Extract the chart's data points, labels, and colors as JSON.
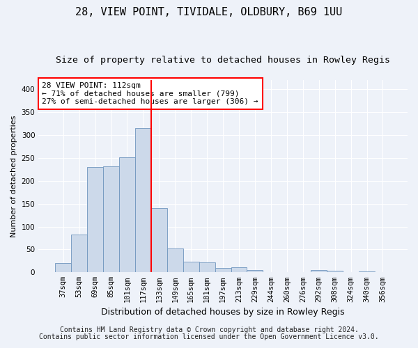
{
  "title1": "28, VIEW POINT, TIVIDALE, OLDBURY, B69 1UU",
  "title2": "Size of property relative to detached houses in Rowley Regis",
  "xlabel": "Distribution of detached houses by size in Rowley Regis",
  "ylabel": "Number of detached properties",
  "footer1": "Contains HM Land Registry data © Crown copyright and database right 2024.",
  "footer2": "Contains public sector information licensed under the Open Government Licence v3.0.",
  "bin_labels": [
    "37sqm",
    "53sqm",
    "69sqm",
    "85sqm",
    "101sqm",
    "117sqm",
    "133sqm",
    "149sqm",
    "165sqm",
    "181sqm",
    "197sqm",
    "213sqm",
    "229sqm",
    "244sqm",
    "260sqm",
    "276sqm",
    "292sqm",
    "308sqm",
    "324sqm",
    "340sqm",
    "356sqm"
  ],
  "bar_values": [
    20,
    82,
    230,
    232,
    252,
    315,
    140,
    52,
    23,
    22,
    10,
    11,
    5,
    0,
    0,
    0,
    5,
    3,
    0,
    2,
    1
  ],
  "bar_color": "#ccd9ea",
  "bar_edge_color": "#7096be",
  "vline_x_index": 5,
  "vline_color": "red",
  "annotation_text": "28 VIEW POINT: 112sqm\n← 71% of detached houses are smaller (799)\n27% of semi-detached houses are larger (306) →",
  "annotation_box_color": "white",
  "annotation_box_edge_color": "red",
  "ylim": [
    0,
    420
  ],
  "yticks": [
    0,
    50,
    100,
    150,
    200,
    250,
    300,
    350,
    400
  ],
  "bg_color": "#eef2f9",
  "grid_color": "white",
  "title1_fontsize": 11,
  "title2_fontsize": 9.5,
  "xlabel_fontsize": 9,
  "ylabel_fontsize": 8,
  "tick_fontsize": 7.5,
  "annotation_fontsize": 8,
  "footer_fontsize": 7
}
